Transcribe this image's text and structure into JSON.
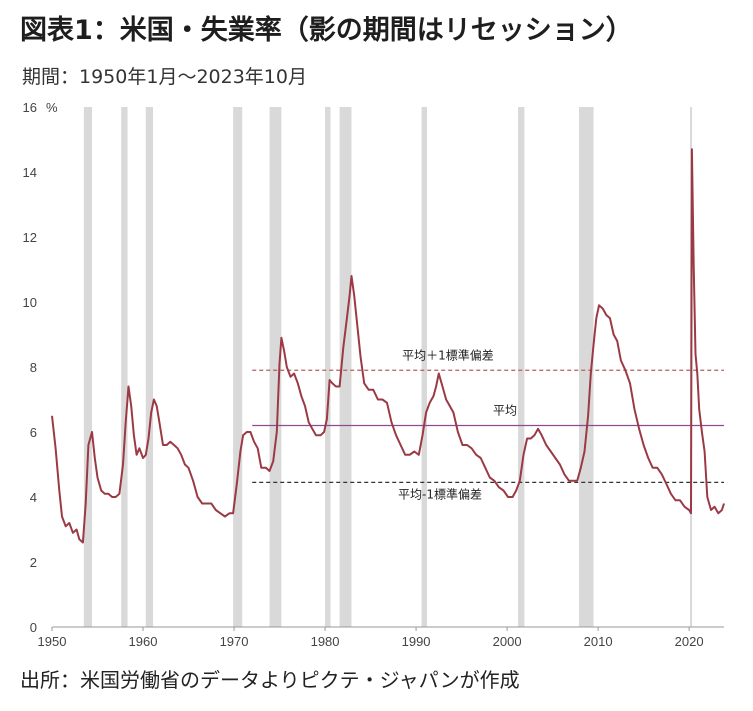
{
  "title": "図表1：米国・失業率（影の期間はリセッション）",
  "subtitle": "期間：1950年1月～2023年10月",
  "source": "出所：米国労働省のデータよりピクテ・ジャパンが作成",
  "chart_data": {
    "type": "line",
    "ylabel_unit": "%",
    "ylim": [
      0,
      16
    ],
    "xlim": [
      1950,
      2023.83
    ],
    "y_ticks": [
      0,
      2,
      4,
      6,
      8,
      10,
      12,
      14,
      16
    ],
    "x_ticks": [
      1950,
      1960,
      1970,
      1980,
      1990,
      2000,
      2010,
      2020
    ],
    "grid": false,
    "colors": {
      "series": "#9b3a45",
      "recession": "#d9d9d9",
      "mean": "#8e4a8e",
      "band_upper": "#b06060",
      "band_lower": "#333333"
    },
    "recessions": [
      [
        1953.5,
        1954.4
      ],
      [
        1957.6,
        1958.3
      ],
      [
        1960.3,
        1961.1
      ],
      [
        1969.9,
        1970.9
      ],
      [
        1973.9,
        1975.2
      ],
      [
        1980.0,
        1980.6
      ],
      [
        1981.6,
        1982.9
      ],
      [
        1990.6,
        1991.2
      ],
      [
        2001.2,
        2001.9
      ],
      [
        2007.9,
        2009.5
      ],
      [
        2020.1,
        2020.3
      ]
    ],
    "reference_lines": [
      {
        "label": "平均＋1標準偏差",
        "value": 7.9,
        "x_start": 1972.0,
        "style": "dashed"
      },
      {
        "label": "平均",
        "value": 6.2,
        "x_start": 1972.0,
        "style": "solid"
      },
      {
        "label": "平均-1標準偏差",
        "value": 4.45,
        "x_start": 1972.0,
        "style": "dashed"
      }
    ],
    "series": [
      {
        "x": [
          1950.0,
          1950.4,
          1950.8,
          1951.1,
          1951.5,
          1951.9,
          1952.3,
          1952.7,
          1953.0,
          1953.4,
          1953.7,
          1954.0,
          1954.4,
          1954.7,
          1955.0,
          1955.4,
          1955.8,
          1956.2,
          1956.6,
          1957.0,
          1957.4,
          1957.8,
          1958.1,
          1958.4,
          1958.7,
          1959.0,
          1959.3,
          1959.6,
          1960.0,
          1960.3,
          1960.6,
          1960.9,
          1961.2,
          1961.5,
          1961.8,
          1962.2,
          1962.6,
          1963.0,
          1963.4,
          1963.8,
          1964.2,
          1964.6,
          1965.0,
          1965.5,
          1966.0,
          1966.5,
          1967.0,
          1967.5,
          1968.0,
          1968.5,
          1969.0,
          1969.5,
          1969.9,
          1970.3,
          1970.7,
          1971.0,
          1971.4,
          1971.8,
          1972.2,
          1972.6,
          1973.0,
          1973.5,
          1973.9,
          1974.3,
          1974.7,
          1975.0,
          1975.2,
          1975.5,
          1975.8,
          1976.2,
          1976.6,
          1977.0,
          1977.4,
          1977.8,
          1978.2,
          1978.6,
          1979.0,
          1979.5,
          1979.9,
          1980.2,
          1980.5,
          1980.8,
          1981.2,
          1981.6,
          1982.0,
          1982.4,
          1982.7,
          1982.9,
          1983.2,
          1983.5,
          1983.9,
          1984.3,
          1984.8,
          1985.3,
          1985.8,
          1986.3,
          1986.8,
          1987.3,
          1987.8,
          1988.3,
          1988.8,
          1989.3,
          1989.8,
          1990.3,
          1990.7,
          1991.1,
          1991.5,
          1991.9,
          1992.2,
          1992.5,
          1992.9,
          1993.3,
          1993.7,
          1994.1,
          1994.6,
          1995.1,
          1995.6,
          1996.1,
          1996.6,
          1997.1,
          1997.6,
          1998.1,
          1998.6,
          1999.1,
          1999.6,
          2000.1,
          2000.6,
          2001.0,
          2001.4,
          2001.8,
          2002.2,
          2002.6,
          2003.0,
          2003.4,
          2003.8,
          2004.3,
          2004.8,
          2005.3,
          2005.8,
          2006.3,
          2006.8,
          2007.3,
          2007.7,
          2008.1,
          2008.5,
          2008.9,
          2009.2,
          2009.5,
          2009.8,
          2010.1,
          2010.5,
          2010.9,
          2011.3,
          2011.7,
          2012.1,
          2012.5,
          2013.0,
          2013.5,
          2014.0,
          2014.5,
          2015.0,
          2015.5,
          2016.0,
          2016.5,
          2017.0,
          2017.5,
          2018.0,
          2018.5,
          2019.0,
          2019.5,
          2020.0,
          2020.2,
          2020.3,
          2020.5,
          2020.7,
          2020.9,
          2021.1,
          2021.4,
          2021.7,
          2022.0,
          2022.4,
          2022.8,
          2023.2,
          2023.6,
          2023.83
        ],
        "values": [
          6.5,
          5.5,
          4.2,
          3.4,
          3.1,
          3.2,
          2.9,
          3.0,
          2.7,
          2.6,
          3.8,
          5.6,
          6.0,
          5.2,
          4.6,
          4.2,
          4.1,
          4.1,
          4.0,
          4.0,
          4.1,
          5.0,
          6.3,
          7.4,
          6.8,
          5.9,
          5.3,
          5.5,
          5.2,
          5.3,
          5.8,
          6.6,
          7.0,
          6.8,
          6.3,
          5.6,
          5.6,
          5.7,
          5.6,
          5.5,
          5.3,
          5.0,
          4.9,
          4.5,
          4.0,
          3.8,
          3.8,
          3.8,
          3.6,
          3.5,
          3.4,
          3.5,
          3.5,
          4.4,
          5.4,
          5.9,
          6.0,
          6.0,
          5.7,
          5.5,
          4.9,
          4.9,
          4.8,
          5.1,
          6.0,
          8.1,
          8.9,
          8.5,
          8.0,
          7.7,
          7.8,
          7.5,
          7.1,
          6.8,
          6.3,
          6.1,
          5.9,
          5.9,
          6.0,
          6.4,
          7.6,
          7.5,
          7.4,
          7.4,
          8.6,
          9.5,
          10.2,
          10.8,
          10.2,
          9.4,
          8.3,
          7.5,
          7.3,
          7.3,
          7.0,
          7.0,
          6.9,
          6.3,
          5.9,
          5.6,
          5.3,
          5.3,
          5.4,
          5.3,
          5.9,
          6.6,
          6.9,
          7.1,
          7.4,
          7.8,
          7.4,
          7.0,
          6.8,
          6.6,
          6.0,
          5.6,
          5.6,
          5.5,
          5.3,
          5.2,
          4.9,
          4.6,
          4.5,
          4.3,
          4.2,
          4.0,
          4.0,
          4.2,
          4.5,
          5.3,
          5.8,
          5.8,
          5.9,
          6.1,
          5.9,
          5.6,
          5.4,
          5.2,
          5.0,
          4.7,
          4.5,
          4.5,
          4.5,
          4.9,
          5.4,
          6.5,
          7.8,
          8.7,
          9.5,
          9.9,
          9.8,
          9.6,
          9.5,
          9.0,
          8.8,
          8.2,
          7.9,
          7.5,
          6.7,
          6.1,
          5.6,
          5.2,
          4.9,
          4.9,
          4.7,
          4.4,
          4.1,
          3.9,
          3.9,
          3.7,
          3.6,
          3.5,
          14.7,
          11.1,
          8.4,
          7.8,
          6.7,
          6.0,
          5.4,
          4.0,
          3.6,
          3.7,
          3.5,
          3.6,
          3.8
        ]
      }
    ]
  }
}
